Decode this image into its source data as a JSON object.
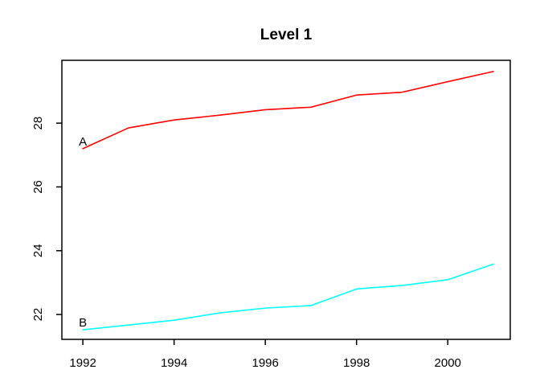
{
  "window": {
    "background_color": "#ffffff"
  },
  "chart_data": {
    "type": "line",
    "title": "Level 1",
    "xlabel": "",
    "ylabel": "",
    "x": [
      1992,
      1993,
      1994,
      1995,
      1996,
      1997,
      1998,
      1999,
      2000,
      2001
    ],
    "series": [
      {
        "name": "A",
        "label": "A",
        "color": "#ff0000",
        "values": [
          27.2,
          27.85,
          28.1,
          28.25,
          28.42,
          28.5,
          28.88,
          28.97,
          29.3,
          29.62
        ]
      },
      {
        "name": "B",
        "label": "B",
        "color": "#00ffff",
        "values": [
          21.52,
          21.67,
          21.82,
          22.05,
          22.2,
          22.28,
          22.8,
          22.91,
          23.09,
          23.58
        ]
      }
    ],
    "x_ticks": [
      1992,
      1994,
      1996,
      1998,
      2000
    ],
    "y_ticks": [
      22,
      24,
      26,
      28
    ],
    "xlim": [
      1991.54,
      2001.37
    ],
    "ylim": [
      21.22,
      29.97
    ],
    "grid": false,
    "legend_position": "none",
    "series_labels_at_first_point": true,
    "axis_color": "#000000",
    "text_color": "#000000"
  }
}
